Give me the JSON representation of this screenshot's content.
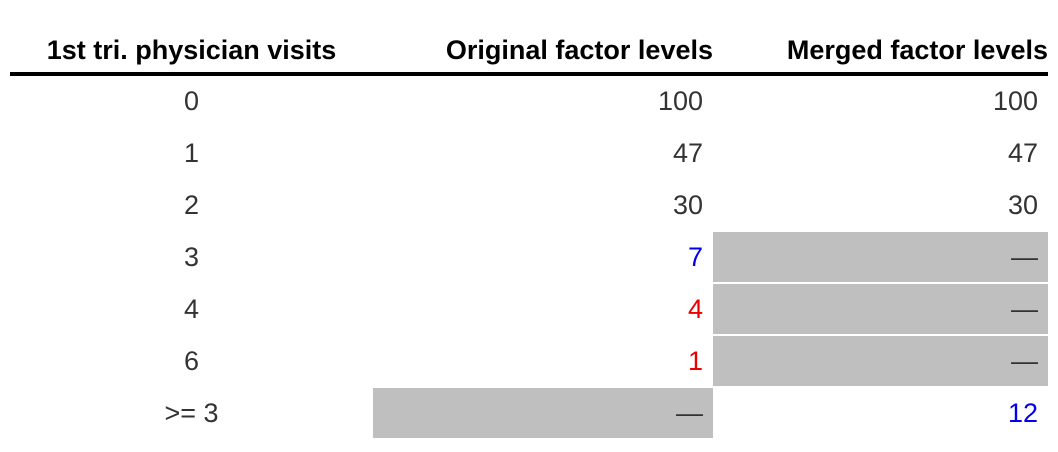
{
  "table": {
    "headers": [
      "1st tri. physician visits",
      "Original factor levels",
      "Merged factor levels"
    ],
    "rows": [
      {
        "visits": "0",
        "original": "100",
        "merged": "100",
        "original_color": "#333333",
        "merged_color": "#333333",
        "original_shaded": false,
        "merged_shaded": false
      },
      {
        "visits": "1",
        "original": "47",
        "merged": "47",
        "original_color": "#333333",
        "merged_color": "#333333",
        "original_shaded": false,
        "merged_shaded": false
      },
      {
        "visits": "2",
        "original": "30",
        "merged": "30",
        "original_color": "#333333",
        "merged_color": "#333333",
        "original_shaded": false,
        "merged_shaded": false
      },
      {
        "visits": "3",
        "original": "7",
        "merged": "—",
        "original_color": "#0000ee",
        "merged_color": "#333333",
        "original_shaded": false,
        "merged_shaded": true
      },
      {
        "visits": "4",
        "original": "4",
        "merged": "—",
        "original_color": "#ee0000",
        "merged_color": "#333333",
        "original_shaded": false,
        "merged_shaded": true
      },
      {
        "visits": "6",
        "original": "1",
        "merged": "—",
        "original_color": "#ee0000",
        "merged_color": "#333333",
        "original_shaded": false,
        "merged_shaded": true
      },
      {
        "visits": ">= 3",
        "original": "—",
        "merged": "12",
        "original_color": "#333333",
        "merged_color": "#0000ee",
        "original_shaded": true,
        "merged_shaded": false
      }
    ],
    "colors": {
      "shade": "#bfbfbf",
      "text": "#333333",
      "blue": "#0000ee",
      "red": "#ee0000",
      "rule": "#000000"
    }
  }
}
